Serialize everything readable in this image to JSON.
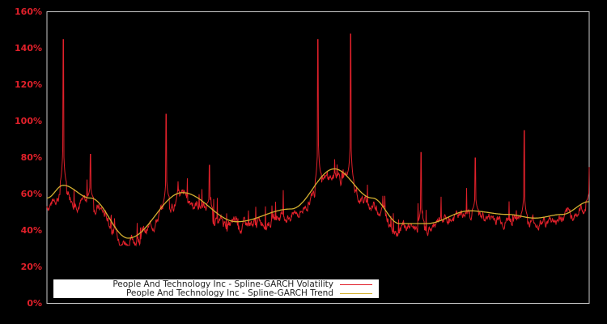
{
  "chart_data": {
    "type": "line",
    "title": "",
    "xlabel": "",
    "ylabel": "",
    "ylim": [
      0,
      160
    ],
    "y_ticks": [
      "0%",
      "20%",
      "40%",
      "60%",
      "80%",
      "100%",
      "120%",
      "140%",
      "160%"
    ],
    "grid": false,
    "legend_position": "lower-left",
    "background": "#000000",
    "series": [
      {
        "name": "People And Technology Inc - Spline-GARCH Volatility",
        "color": "#e0202a",
        "description": "Noisy daily volatility series fluctuating around trend with spikes",
        "approx_points_x_frac": [
          0.0,
          0.03,
          0.05,
          0.08,
          0.1,
          0.15,
          0.22,
          0.26,
          0.3,
          0.35,
          0.4,
          0.45,
          0.5,
          0.51,
          0.55,
          0.56,
          0.57,
          0.6,
          0.65,
          0.69,
          0.75,
          0.79,
          0.85,
          0.88,
          0.9,
          0.95,
          1.0
        ],
        "approx_points_y": [
          56,
          145,
          58,
          82,
          55,
          36,
          104,
          62,
          76,
          45,
          55,
          58,
          145,
          70,
          80,
          148,
          72,
          55,
          43,
          83,
          52,
          80,
          49,
          95,
          48,
          52,
          75
        ]
      },
      {
        "name": "People And Technology Inc - Spline-GARCH Trend",
        "color": "#d4b030",
        "description": "Smooth spline trend",
        "approx_points_x_frac": [
          0.0,
          0.03,
          0.08,
          0.15,
          0.25,
          0.35,
          0.45,
          0.53,
          0.6,
          0.65,
          0.7,
          0.78,
          0.85,
          0.9,
          0.95,
          1.0
        ],
        "approx_points_y": [
          58,
          65,
          58,
          36,
          61,
          45,
          52,
          74,
          58,
          44,
          44,
          51,
          49,
          47,
          49,
          56
        ]
      }
    ]
  },
  "legend": {
    "volatility_label": "People And Technology Inc - Spline-GARCH Volatility",
    "trend_label": "People And Technology Inc - Spline-GARCH Trend"
  }
}
